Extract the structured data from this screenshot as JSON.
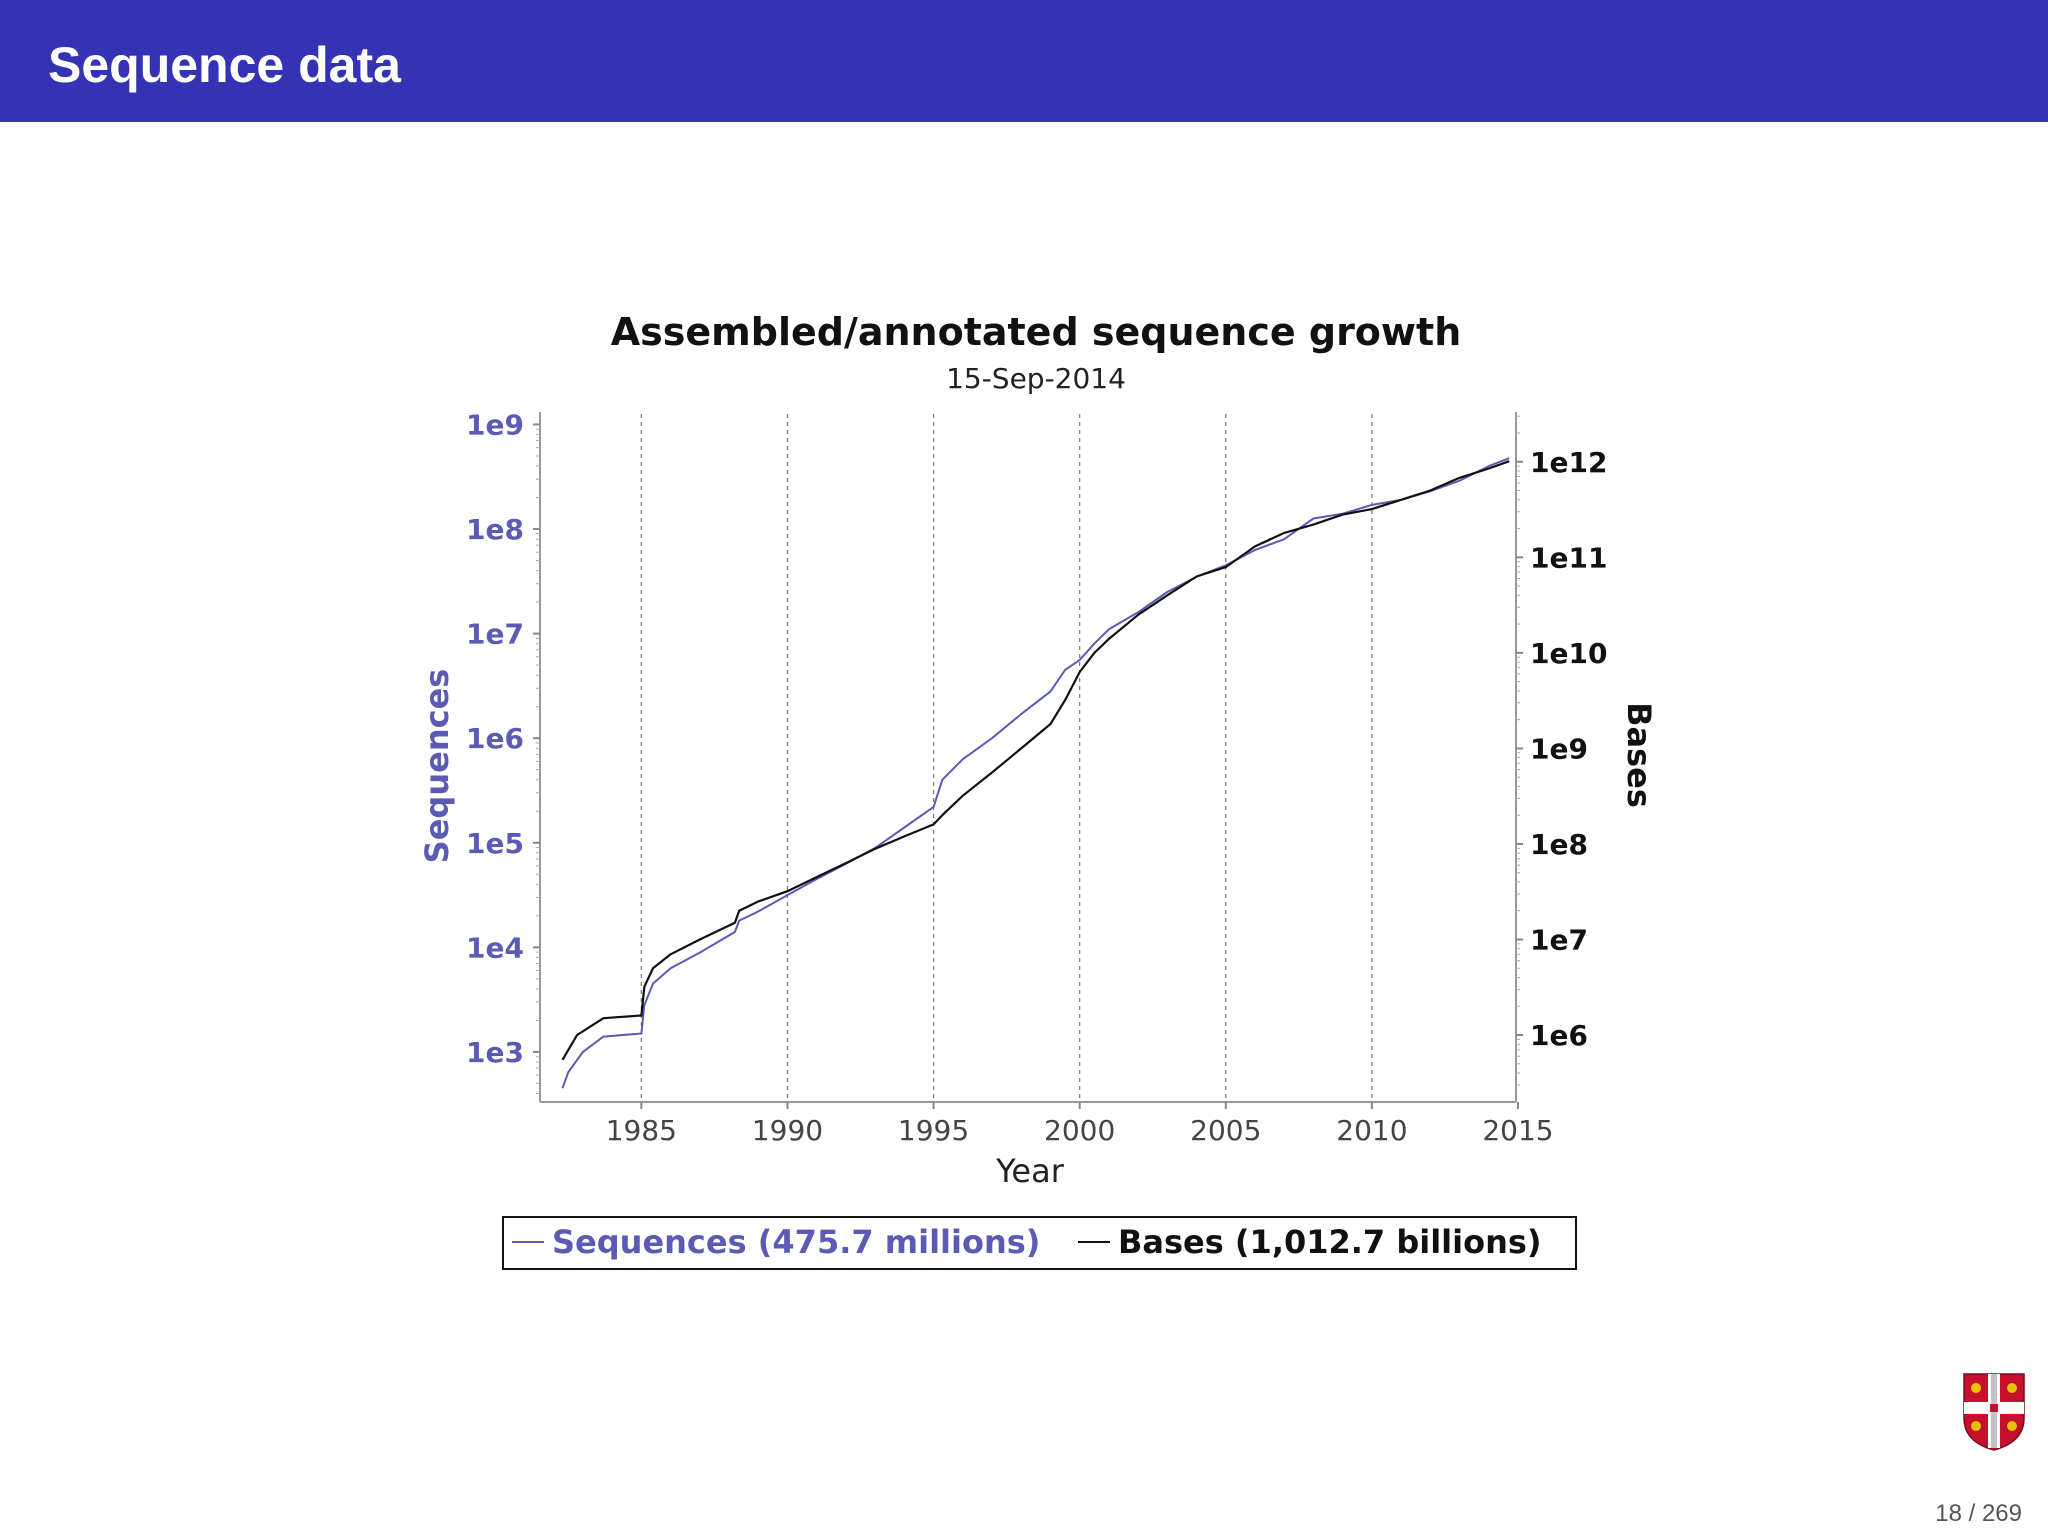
{
  "slide": {
    "title": "Sequence data",
    "page_number": "18 / 269"
  },
  "colors": {
    "header_bg": "#3333b3",
    "sequences": "#5b5bb5",
    "bases": "#111111"
  },
  "chart_data": {
    "type": "line",
    "title": "Assembled/annotated sequence growth",
    "subtitle": "15-Sep-2014",
    "xlabel": "Year",
    "xlim": [
      1981.6,
      2015
    ],
    "x_ticks": [
      1985,
      1990,
      1995,
      2000,
      2005,
      2010,
      2015
    ],
    "grid": "vertical dashed",
    "y_left": {
      "label": "Sequences",
      "scale": "log",
      "ticks": [
        "1e3",
        "1e4",
        "1e5",
        "1e6",
        "1e7",
        "1e8",
        "1e9"
      ],
      "log_range": [
        2.54,
        9.1
      ]
    },
    "y_right": {
      "label": "Bases",
      "scale": "log",
      "ticks": [
        "1e6",
        "1e7",
        "1e8",
        "1e9",
        "1e10",
        "1e11",
        "1e12"
      ],
      "log_range": [
        5.32,
        12.5
      ]
    },
    "legend": {
      "placement": "bottom",
      "entries": [
        "Sequences (475.7 millions)",
        "Bases (1,012.7 billions)"
      ]
    },
    "series": [
      {
        "name": "Sequences (475.7 millions)",
        "axis": "left",
        "x": [
          1982.3,
          1982.5,
          1983.0,
          1983.7,
          1985.0,
          1985.1,
          1985.4,
          1986.0,
          1987.0,
          1988.2,
          1988.35,
          1989.0,
          1990.0,
          1991.0,
          1992.0,
          1993.0,
          1994.0,
          1995.0,
          1995.3,
          1996.0,
          1997.0,
          1998.0,
          1999.0,
          1999.5,
          2000.0,
          2000.5,
          2001.0,
          2002.0,
          2003.0,
          2004.0,
          2005.0,
          2006.0,
          2007.0,
          2008.0,
          2009.0,
          2010.0,
          2011.0,
          2012.0,
          2013.0,
          2014.0,
          2014.7
        ],
        "y": [
          450,
          640,
          1000,
          1400,
          1500,
          2800,
          4500,
          6300,
          8900,
          14000,
          18000,
          22000,
          31600,
          45000,
          63000,
          89000,
          140000,
          220000,
          400000,
          630000,
          1000000,
          1700000,
          2800000,
          4500000,
          5600000,
          8000000,
          11000000,
          16000000,
          25000000,
          35000000,
          45000000,
          63000000,
          80000000,
          126000000,
          140000000,
          170000000,
          190000000,
          230000000,
          290000000,
          400000000,
          475700000
        ]
      },
      {
        "name": "Bases (1,012.7 billions)",
        "axis": "right",
        "x": [
          1982.3,
          1982.8,
          1983.7,
          1985.0,
          1985.1,
          1985.4,
          1986.0,
          1987.0,
          1988.2,
          1988.35,
          1989.0,
          1990.0,
          1991.0,
          1992.0,
          1993.0,
          1994.0,
          1995.0,
          1995.3,
          1996.0,
          1997.0,
          1998.0,
          1999.0,
          1999.5,
          2000.0,
          2000.5,
          2001.0,
          2002.0,
          2003.0,
          2004.0,
          2005.0,
          2006.0,
          2007.0,
          2008.0,
          2009.0,
          2010.0,
          2011.0,
          2012.0,
          2013.0,
          2014.0,
          2014.7
        ],
        "y": [
          550000,
          1000000,
          1500000,
          1600000,
          3200000,
          5000000,
          7000000,
          10000000,
          15000000,
          20000000,
          25000000,
          32000000,
          45000000,
          63000000,
          89000000,
          120000000,
          160000000,
          200000000,
          320000000,
          560000000,
          1000000000,
          1800000000,
          3200000000,
          6300000000,
          10000000000,
          14000000000,
          25000000000,
          40000000000,
          63000000000,
          79000000000,
          130000000000,
          180000000000,
          220000000000,
          280000000000,
          320000000000,
          400000000000,
          500000000000,
          680000000000,
          850000000000,
          1012700000000
        ]
      }
    ]
  }
}
